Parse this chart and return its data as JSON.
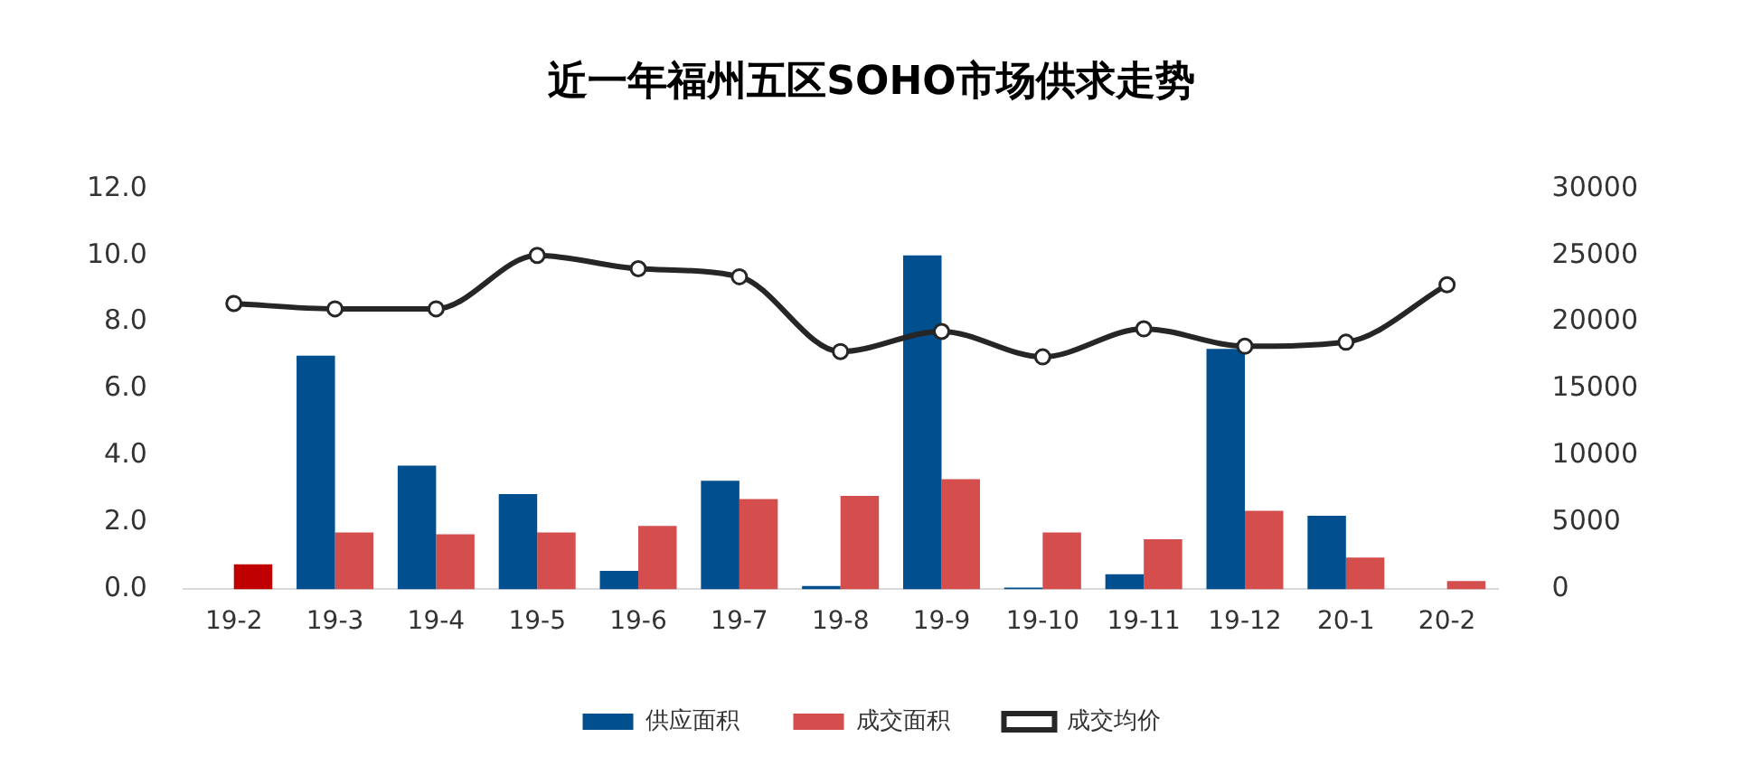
{
  "chart_data": {
    "type": "bar",
    "title": "近一年福州五区SOHO市场供求走势",
    "categories": [
      "19-2",
      "19-3",
      "19-4",
      "19-5",
      "19-6",
      "19-7",
      "19-8",
      "19-9",
      "19-10",
      "19-11",
      "19-12",
      "20-1",
      "20-2"
    ],
    "series": [
      {
        "name": "供应面积",
        "color": "#024f8f",
        "values": [
          null,
          7.0,
          3.7,
          2.85,
          0.55,
          3.25,
          0.1,
          10.0,
          0.05,
          0.45,
          7.2,
          2.2,
          null
        ]
      },
      {
        "name": "成交面积",
        "color": "#d44e4e",
        "colors": [
          "#c00000",
          "#d44e4e",
          "#d44e4e",
          "#d44e4e",
          "#d44e4e",
          "#d44e4e",
          "#d44e4e",
          "#d44e4e",
          "#d44e4e",
          "#d44e4e",
          "#d44e4e",
          "#d44e4e",
          "#d44e4e"
        ],
        "values": [
          0.75,
          1.7,
          1.65,
          1.7,
          1.9,
          2.7,
          2.8,
          3.3,
          1.7,
          1.5,
          2.35,
          0.95,
          0.25
        ]
      },
      {
        "name": "成交均价",
        "type": "line",
        "axis": "y2",
        "color": "#262626",
        "marker": "circle",
        "values": [
          21400,
          21000,
          21000,
          25000,
          24000,
          23400,
          17800,
          19300,
          17400,
          19500,
          18200,
          18500,
          22800
        ]
      }
    ],
    "ylim": [
      0,
      12
    ],
    "yticks": [
      {
        "value": 0,
        "label": "0.0"
      },
      {
        "value": 2,
        "label": "2.0"
      },
      {
        "value": 4,
        "label": "4.0"
      },
      {
        "value": 6,
        "label": "6.0"
      },
      {
        "value": 8,
        "label": "8.0"
      },
      {
        "value": 10,
        "label": "10.0"
      },
      {
        "value": 12,
        "label": "12.0"
      }
    ],
    "y2lim": [
      0,
      30000
    ],
    "y2ticks": [
      0,
      5000,
      10000,
      15000,
      20000,
      25000,
      30000
    ],
    "grid": false,
    "legend": "bottom"
  }
}
